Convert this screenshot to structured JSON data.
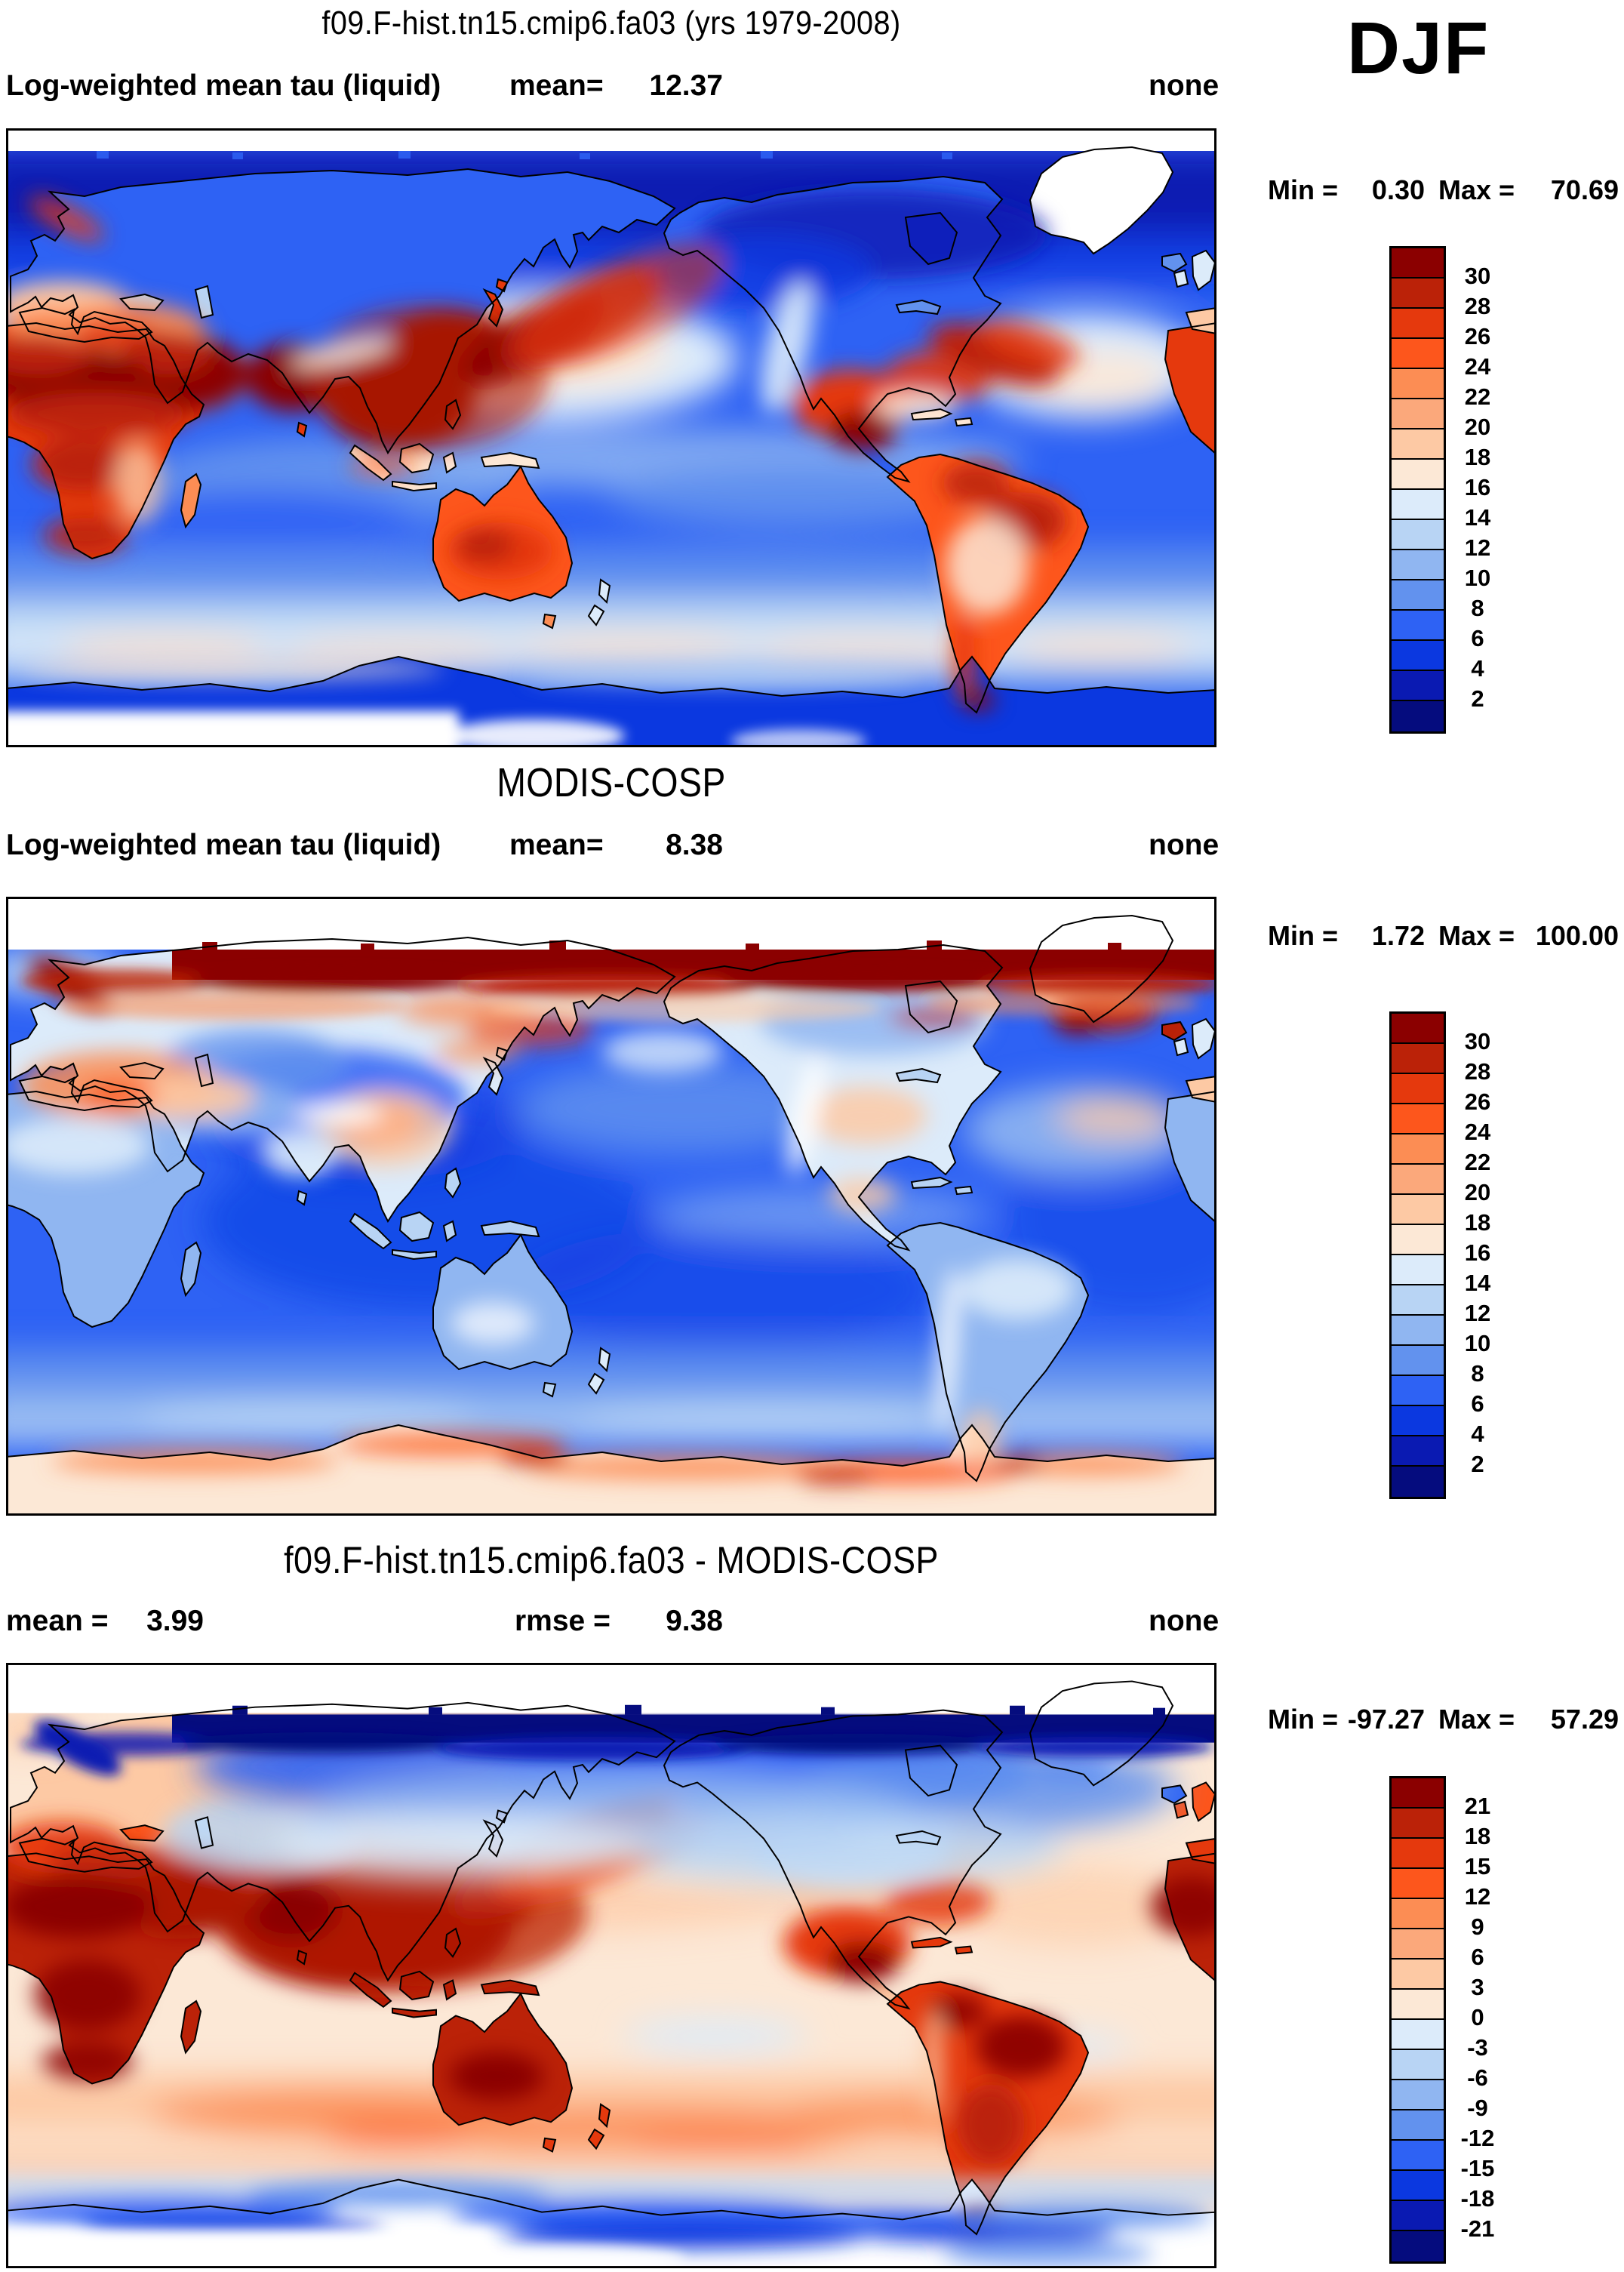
{
  "header": {
    "title": "f09.F-hist.tn15.cmip6.fa03 (yrs 1979-2008)",
    "season": "DJF"
  },
  "panels": [
    {
      "title": "",
      "var_label": "Log-weighted mean tau (liquid)",
      "stats": [
        {
          "label": "mean=",
          "value": "12.37"
        }
      ],
      "units_label": "none",
      "min_label": "Min =",
      "min_value": "0.30",
      "max_label": "Max =",
      "max_value": "70.69",
      "ticks": [
        "30",
        "28",
        "26",
        "24",
        "22",
        "20",
        "18",
        "16",
        "14",
        "12",
        "10",
        "8",
        "6",
        "4",
        "2"
      ]
    },
    {
      "title": "MODIS-COSP",
      "var_label": "Log-weighted mean tau (liquid)",
      "stats": [
        {
          "label": "mean=",
          "value": "8.38"
        }
      ],
      "units_label": "none",
      "min_label": "Min =",
      "min_value": "1.72",
      "max_label": "Max =",
      "max_value": "100.00",
      "ticks": [
        "30",
        "28",
        "26",
        "24",
        "22",
        "20",
        "18",
        "16",
        "14",
        "12",
        "10",
        "8",
        "6",
        "4",
        "2"
      ]
    },
    {
      "title": "f09.F-hist.tn15.cmip6.fa03 - MODIS-COSP",
      "var_label": "",
      "stats": [
        {
          "label": "mean =",
          "value": "3.99"
        },
        {
          "label": "rmse =",
          "value": "9.38"
        }
      ],
      "units_label": "none",
      "min_label": "Min =",
      "min_value": "-97.27",
      "max_label": "Max =",
      "max_value": "57.29",
      "ticks": [
        "21",
        "18",
        "15",
        "12",
        "9",
        "6",
        "3",
        "0",
        "-3",
        "-6",
        "-9",
        "-12",
        "-15",
        "-18",
        "-21"
      ]
    }
  ],
  "palette_top_to_bottom": [
    "#8b0000",
    "#bb2208",
    "#e5390d",
    "#fd561c",
    "#fc8d54",
    "#fba87b",
    "#fdc9a4",
    "#fce8d6",
    "#dcebfa",
    "#b8d4f4",
    "#90b6f1",
    "#6292ee",
    "#2e62f4",
    "#0b38e0",
    "#0a1ab2",
    "#050c7e"
  ],
  "chart_data": [
    {
      "type": "heatmap",
      "panel": "model",
      "title": "f09.F-hist.tn15.cmip6.fa03 (yrs 1979-2008)",
      "variable": "Log-weighted mean tau (liquid)",
      "season": "DJF",
      "projection": "global cylindrical lat-lon map",
      "mean": 12.37,
      "min": 0.3,
      "max": 70.69,
      "units": "none",
      "colorbar_levels": [
        2,
        4,
        6,
        8,
        10,
        12,
        14,
        16,
        18,
        20,
        22,
        24,
        26,
        28,
        30
      ],
      "legend_position": "right",
      "description": "Model liquid cloud optical depth: high values (red, >30) over tropical/subtropical land (Africa, S Asia, China, Australia, S America) and NW Pacific; low values (blue, 2-10) over most oceans and Arctic; no data poleward of ~85N and over Antarctic interior"
    },
    {
      "type": "heatmap",
      "panel": "observations",
      "title": "MODIS-COSP",
      "variable": "Log-weighted mean tau (liquid)",
      "season": "DJF",
      "projection": "global cylindrical lat-lon map",
      "mean": 8.38,
      "min": 1.72,
      "max": 100.0,
      "units": "none",
      "colorbar_levels": [
        2,
        4,
        6,
        8,
        10,
        12,
        14,
        16,
        18,
        20,
        22,
        24,
        26,
        28,
        30
      ],
      "legend_position": "right",
      "description": "MODIS-COSP observations: mostly low tau (blue) over oceans and land, saturated dark-red ring at the ~65-80N data edge, orange ring and pale interior around Antarctica, no data poleward of ~81N"
    },
    {
      "type": "heatmap",
      "panel": "difference (model - observations)",
      "title": "f09.F-hist.tn15.cmip6.fa03 - MODIS-COSP",
      "season": "DJF",
      "projection": "global cylindrical lat-lon map",
      "mean": 3.99,
      "rmse": 9.38,
      "min": -97.27,
      "max": 57.29,
      "units": "none",
      "colorbar_levels": [
        -21,
        -18,
        -15,
        -12,
        -9,
        -6,
        -3,
        0,
        3,
        6,
        9,
        12,
        15,
        18,
        21
      ],
      "legend_position": "right",
      "description": "Difference map: positive bias (orange/dark red) over most oceans and tropical land, strong negative bias (dark blue) along the Arctic data edge and around the Antarctic coast; white where data missing"
    }
  ]
}
